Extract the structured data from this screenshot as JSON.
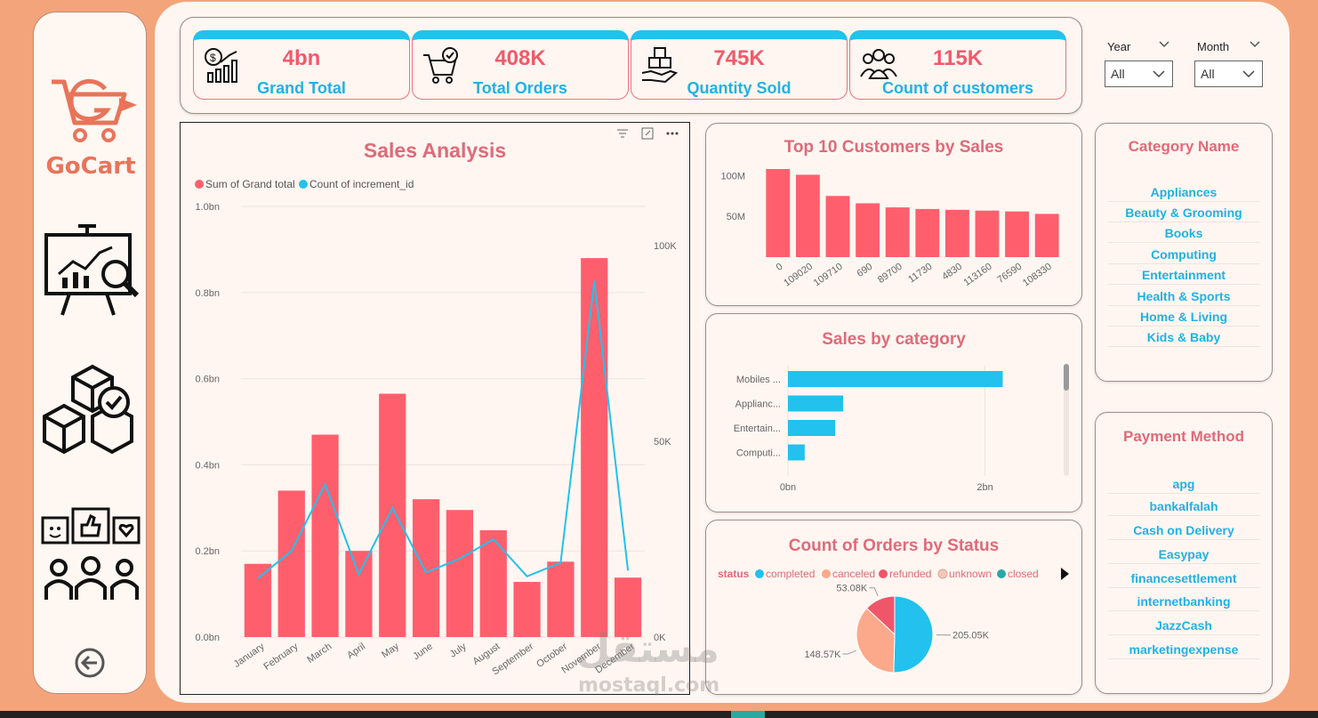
{
  "brand": {
    "name": "GoCart"
  },
  "nav": [
    {
      "icon": "analytics-board-icon"
    },
    {
      "icon": "product-boxes-icon"
    },
    {
      "icon": "customer-feedback-icon"
    },
    {
      "icon": "back-arrow-icon"
    }
  ],
  "kpis": [
    {
      "value": "4bn",
      "label": "Grand Total",
      "icon": "money-growth-icon"
    },
    {
      "value": "408K",
      "label": "Total Orders",
      "icon": "cart-check-icon"
    },
    {
      "value": "745K",
      "label": "Quantity Sold",
      "icon": "boxes-hand-icon"
    },
    {
      "value": "115K",
      "label": "Count of customers",
      "icon": "people-group-icon"
    }
  ],
  "filters": {
    "year": {
      "label": "Year",
      "value": "All"
    },
    "month": {
      "label": "Month",
      "value": "All"
    }
  },
  "sales_analysis": {
    "title": "Sales Analysis",
    "legend": [
      "Sum of Grand total",
      "Count of increment_id"
    ]
  },
  "top_customers": {
    "title": "Top 10 Customers by Sales"
  },
  "sales_by_category": {
    "title": "Sales by category"
  },
  "orders_by_status": {
    "title": "Count of Orders by Status",
    "legend_title": "status",
    "legend": [
      "completed",
      "canceled",
      "refunded",
      "unknown",
      "closed"
    ],
    "labels": [
      "205.05K",
      "148.57K",
      "53.08K"
    ]
  },
  "category_slicer": {
    "title": "Category Name",
    "items": [
      "Appliances",
      "Beauty & Grooming",
      "Books",
      "Computing",
      "Entertainment",
      "Health & Sports",
      "Home & Living",
      "Kids & Baby"
    ]
  },
  "payment_slicer": {
    "title": "Payment Method",
    "items": [
      "apg",
      "bankalfalah",
      "Cash on Delivery",
      "Easypay",
      "financesettlement",
      "internetbanking",
      "JazzCash",
      "marketingexpense"
    ]
  },
  "watermark": {
    "arabic": "مستقل",
    "latin": "mostaql.com"
  },
  "colors": {
    "bar": "#FF5F6D",
    "accent": "#22C1EE",
    "title": "#E06A78",
    "background": "#F4A47A"
  },
  "chart_data": [
    {
      "type": "bar",
      "title": "Sales Analysis",
      "categories": [
        "January",
        "February",
        "March",
        "April",
        "May",
        "June",
        "July",
        "August",
        "September",
        "October",
        "November",
        "December"
      ],
      "series": [
        {
          "name": "Sum of Grand total",
          "values": [
            0.17,
            0.34,
            0.47,
            0.2,
            0.565,
            0.32,
            0.295,
            0.248,
            0.128,
            0.175,
            0.88,
            0.138
          ],
          "axis": "left"
        },
        {
          "name": "Count of increment_id",
          "type": "line",
          "values": [
            15000,
            22000,
            39000,
            16000,
            33000,
            16500,
            20000,
            25000,
            15500,
            19000,
            91000,
            17000
          ],
          "axis": "right"
        }
      ],
      "ylim": [
        0,
        1.0
      ],
      "yticks": [
        "0.0bn",
        "0.2bn",
        "0.4bn",
        "0.6bn",
        "0.8bn",
        "1.0bn"
      ],
      "y2lim": [
        0,
        110000
      ],
      "y2ticks": [
        "0K",
        "50K",
        "100K"
      ]
    },
    {
      "type": "bar",
      "title": "Top 10 Customers by Sales",
      "categories": [
        "0",
        "109020",
        "109710",
        "690",
        "89700",
        "11730",
        "4830",
        "113160",
        "76590",
        "108330"
      ],
      "values": [
        108,
        101,
        75,
        66,
        61,
        59,
        58,
        57,
        56,
        53
      ],
      "yticks": [
        "50M",
        "100M"
      ],
      "ylim": [
        0,
        120
      ]
    },
    {
      "type": "bar",
      "orientation": "horizontal",
      "title": "Sales by category",
      "categories": [
        "Mobiles ...",
        "Applianc...",
        "Entertain...",
        "Computi..."
      ],
      "values": [
        2.18,
        0.56,
        0.48,
        0.17
      ],
      "xticks": [
        "0bn",
        "2bn"
      ],
      "xlim": [
        0,
        2.6
      ]
    },
    {
      "type": "pie",
      "title": "Count of Orders by Status",
      "categories": [
        "completed",
        "canceled",
        "refunded"
      ],
      "values": [
        205.05,
        148.57,
        53.08
      ],
      "colors": [
        "#22C1EE",
        "#FBA98A",
        "#F0566A"
      ]
    }
  ]
}
